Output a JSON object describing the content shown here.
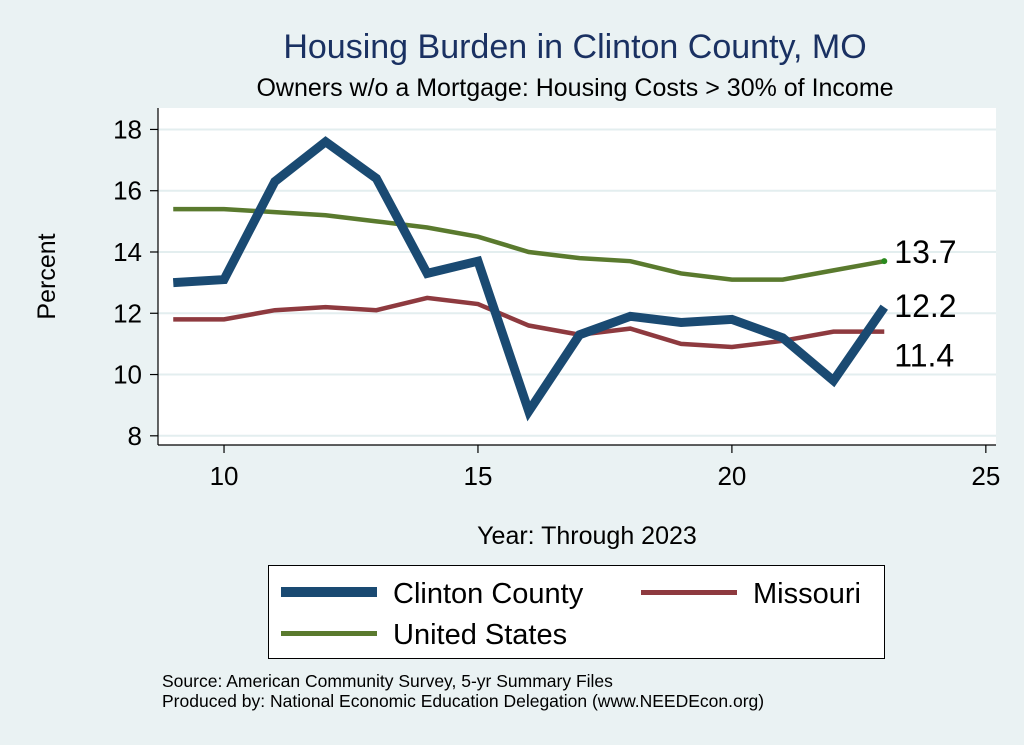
{
  "title": "Housing Burden in Clinton County, MO",
  "subtitle": "Owners w/o a Mortgage: Housing Costs > 30% of Income",
  "notes": [
    "Source: American Community Survey, 5-yr Summary Files",
    "Produced by: National Economic Education Delegation (www.NEEDEcon.org)"
  ],
  "colors": {
    "background": "#eaf2f3",
    "plot_background": "#ffffff",
    "grid": "#e3eeef",
    "title": "#1a3162"
  },
  "chart_data": {
    "type": "line",
    "title": "Housing Burden in Clinton County, MO",
    "subtitle": "Owners w/o a Mortgage: Housing Costs > 30% of Income",
    "xlabel": "Year: Through 2023",
    "ylabel": "Percent",
    "xlim": [
      8.7,
      25.2
    ],
    "ylim": [
      7.7,
      18.7
    ],
    "xticks": [
      10,
      15,
      20,
      25
    ],
    "yticks": [
      8,
      10,
      12,
      14,
      16,
      18
    ],
    "grid": true,
    "legend_position": "bottom",
    "x": [
      9,
      10,
      11,
      12,
      13,
      14,
      15,
      16,
      17,
      18,
      19,
      20,
      21,
      22,
      23
    ],
    "series": [
      {
        "name": "Clinton County",
        "color": "#1a4a72",
        "width": "thick",
        "values": [
          13.0,
          13.1,
          16.3,
          17.6,
          16.4,
          13.3,
          13.7,
          8.8,
          11.3,
          11.9,
          11.7,
          11.8,
          11.2,
          9.8,
          12.2
        ],
        "end_label": "12.2"
      },
      {
        "name": "Missouri",
        "color": "#8e3a3f",
        "width": "medium",
        "values": [
          11.8,
          11.8,
          12.1,
          12.2,
          12.1,
          12.5,
          12.3,
          11.6,
          11.3,
          11.5,
          11.0,
          10.9,
          11.1,
          11.4,
          11.4
        ],
        "end_label": "11.4"
      },
      {
        "name": "United States",
        "color": "#5a7a2e",
        "width": "medium",
        "values": [
          15.4,
          15.4,
          15.3,
          15.2,
          15.0,
          14.8,
          14.5,
          14.0,
          13.8,
          13.7,
          13.3,
          13.1,
          13.1,
          13.4,
          13.7
        ],
        "end_label": "13.7"
      }
    ]
  }
}
